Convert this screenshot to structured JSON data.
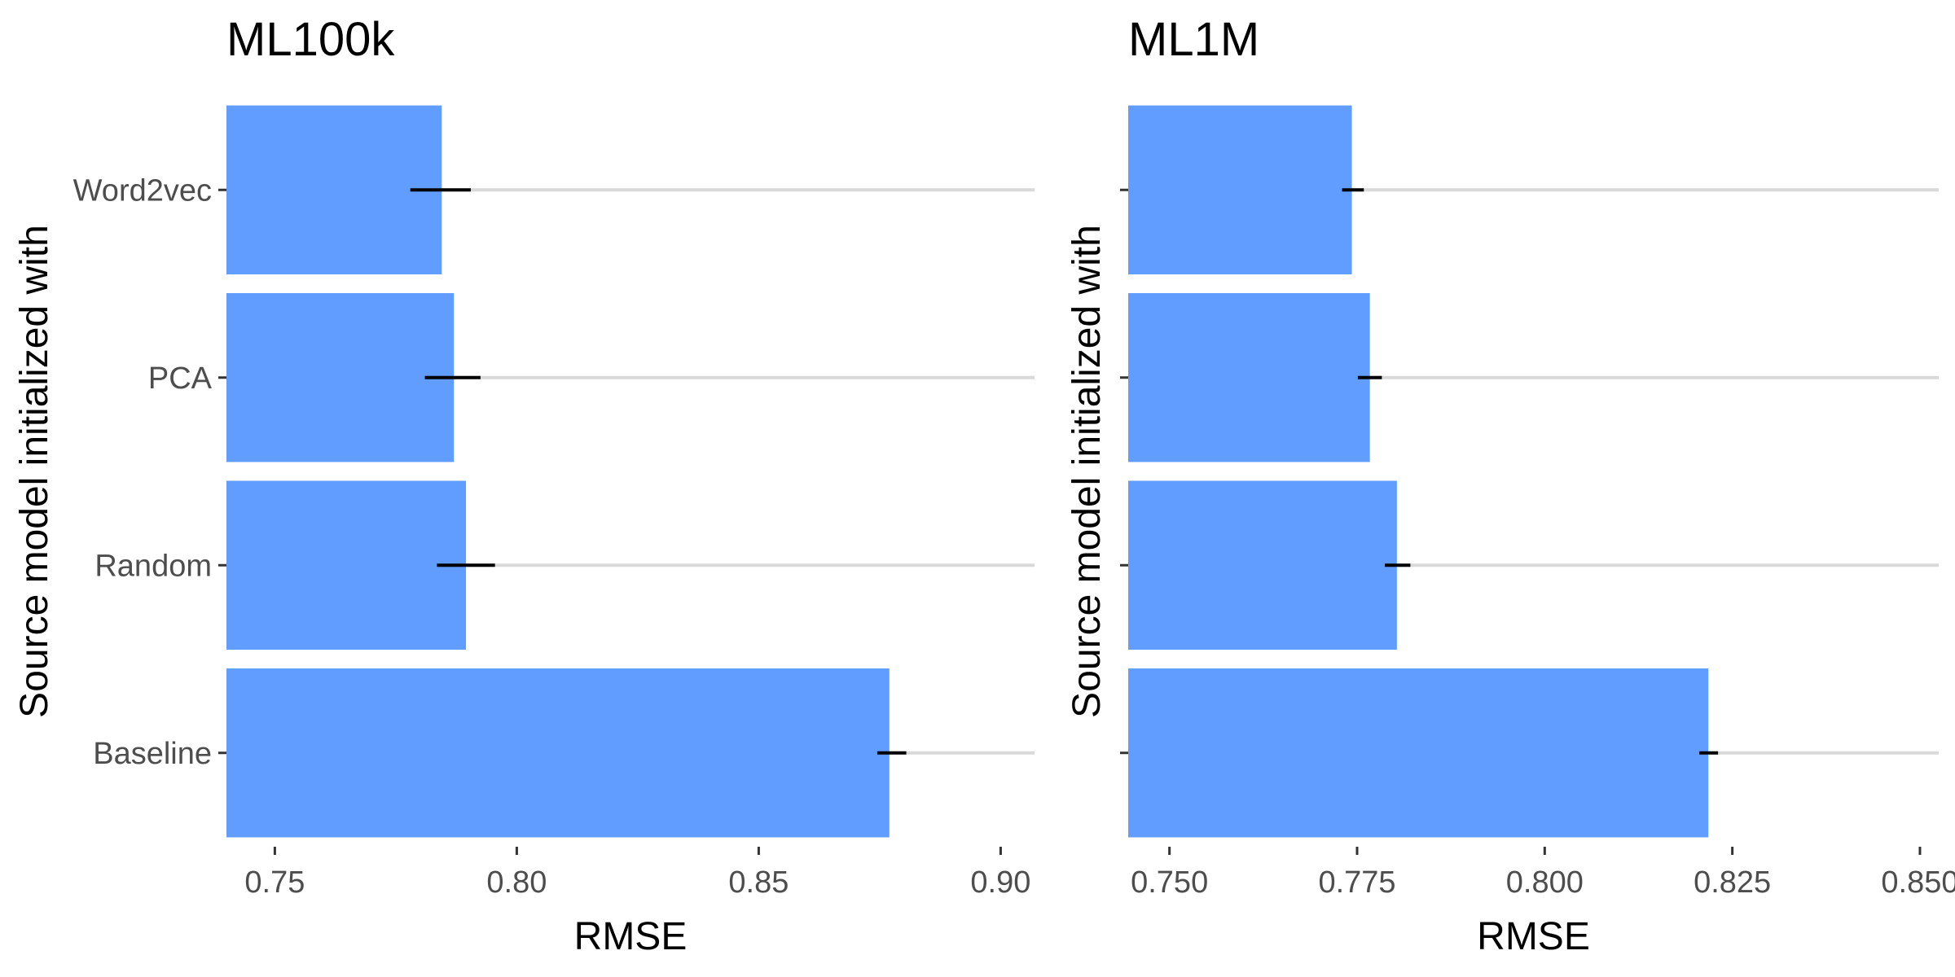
{
  "chart_data": [
    {
      "type": "bar",
      "orientation": "horizontal",
      "title": "ML100k",
      "xlabel": "RMSE",
      "ylabel": "Source model initialized with",
      "categories": [
        "Word2vec",
        "PCA",
        "Random",
        "Baseline"
      ],
      "values": [
        0.7845,
        0.787,
        0.7895,
        0.877
      ],
      "error_low": [
        0.778,
        0.781,
        0.7835,
        0.8745
      ],
      "error_high": [
        0.7905,
        0.7925,
        0.7955,
        0.8805
      ],
      "xlim": [
        0.74,
        0.907
      ],
      "xticks": [
        0.75,
        0.8,
        0.85,
        0.9
      ],
      "xtick_labels": [
        "0.75",
        "0.80",
        "0.85",
        "0.90"
      ],
      "bar_color": "#619cff",
      "grid": "horizontal",
      "legend": "none"
    },
    {
      "type": "bar",
      "orientation": "horizontal",
      "title": "ML1M",
      "xlabel": "RMSE",
      "ylabel": "Source model initialized with",
      "categories": [
        "Word2vec",
        "PCA",
        "Random",
        "Baseline"
      ],
      "values": [
        0.7743,
        0.7767,
        0.7803,
        0.8218
      ],
      "error_low": [
        0.773,
        0.7751,
        0.7787,
        0.8206
      ],
      "error_high": [
        0.7759,
        0.7783,
        0.7821,
        0.8231
      ],
      "xlim": [
        0.7445,
        0.8525
      ],
      "xticks": [
        0.75,
        0.775,
        0.8,
        0.825,
        0.85
      ],
      "xtick_labels": [
        "0.750",
        "0.775",
        "0.800",
        "0.825",
        "0.850"
      ],
      "bar_color": "#619cff",
      "grid": "horizontal",
      "legend": "none"
    }
  ]
}
